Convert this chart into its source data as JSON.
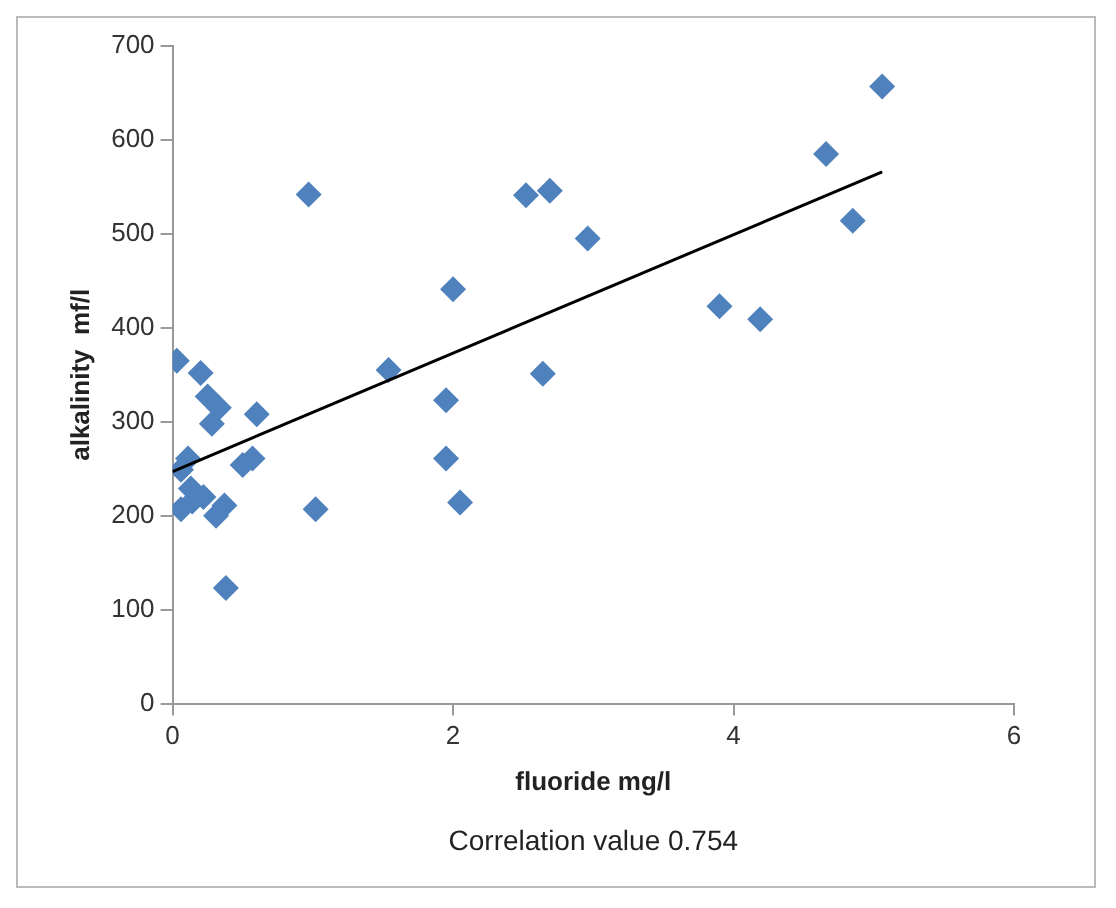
{
  "chart_data": {
    "type": "scatter",
    "xlabel": "fluoride mg/l",
    "ylabel": "alkalinity  mf/l",
    "annotations": [
      "Correlation value 0.754"
    ],
    "xlim": [
      0,
      6
    ],
    "xticks": [
      0,
      2,
      4,
      6
    ],
    "ylim": [
      0,
      700
    ],
    "yticks": [
      0,
      100,
      200,
      300,
      400,
      500,
      600,
      700
    ],
    "grid": false,
    "legend": false,
    "marker": "diamond",
    "series": [
      {
        "type": "scatter",
        "color": "#4f81bd",
        "x": [
          0.97,
          1.54,
          2.0,
          1.95,
          1.95,
          2.05,
          1.02,
          2.52,
          2.69,
          2.96,
          2.64,
          0.6,
          0.57,
          0.5,
          0.38,
          0.03,
          0.2,
          0.25,
          0.33,
          0.28,
          0.11,
          0.06,
          0.13,
          0.22,
          0.37,
          0.31,
          0.14,
          0.06,
          5.06,
          4.66,
          4.85,
          3.9,
          4.19
        ],
        "values": [
          542,
          355,
          441,
          323,
          261,
          214,
          207,
          541,
          546,
          495,
          351,
          308,
          261,
          254,
          123,
          365,
          352,
          327,
          315,
          298,
          261,
          249,
          229,
          220,
          211,
          200,
          215,
          207,
          657,
          585,
          514,
          423,
          409
        ]
      },
      {
        "type": "line",
        "color": "#000000",
        "marker": "none",
        "x": [
          0,
          5.06
        ],
        "values": [
          247,
          566
        ]
      }
    ]
  }
}
